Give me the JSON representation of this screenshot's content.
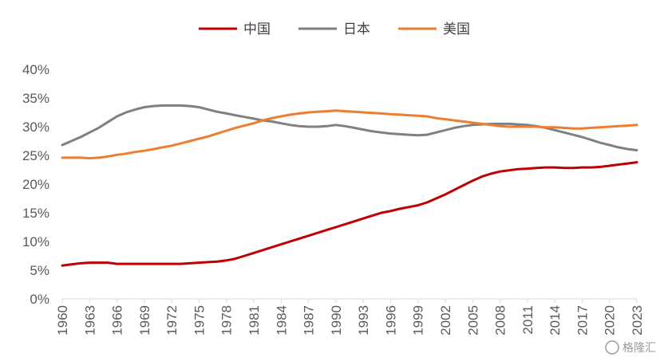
{
  "chart_data": {
    "type": "line",
    "title": "",
    "xlabel": "",
    "ylabel": "",
    "x": [
      1960,
      1961,
      1962,
      1963,
      1964,
      1965,
      1966,
      1967,
      1968,
      1969,
      1970,
      1971,
      1972,
      1973,
      1974,
      1975,
      1976,
      1977,
      1978,
      1979,
      1980,
      1981,
      1982,
      1983,
      1984,
      1985,
      1986,
      1987,
      1988,
      1989,
      1990,
      1991,
      1992,
      1993,
      1994,
      1995,
      1996,
      1997,
      1998,
      1999,
      2000,
      2001,
      2002,
      2003,
      2004,
      2005,
      2006,
      2007,
      2008,
      2009,
      2010,
      2011,
      2012,
      2013,
      2014,
      2015,
      2016,
      2017,
      2018,
      2019,
      2020,
      2021,
      2022,
      2023
    ],
    "x_tick_labels": [
      "1960",
      "1963",
      "1966",
      "1969",
      "1972",
      "1975",
      "1978",
      "1981",
      "1984",
      "1987",
      "1990",
      "1993",
      "1996",
      "1999",
      "2002",
      "2005",
      "2008",
      "2011",
      "2014",
      "2017",
      "2020",
      "2023"
    ],
    "ylim": [
      0,
      0.4
    ],
    "y_ticks": [
      0,
      0.05,
      0.1,
      0.15,
      0.2,
      0.25,
      0.3,
      0.35,
      0.4
    ],
    "y_tick_labels": [
      "0%",
      "5%",
      "10%",
      "15%",
      "20%",
      "25%",
      "30%",
      "35%",
      "40%"
    ],
    "grid": false,
    "legend_position": "top-center",
    "series": [
      {
        "name": "中国",
        "color": "#C00000",
        "values": [
          0.058,
          0.06,
          0.062,
          0.063,
          0.063,
          0.063,
          0.061,
          0.061,
          0.061,
          0.061,
          0.061,
          0.061,
          0.061,
          0.061,
          0.062,
          0.063,
          0.064,
          0.065,
          0.067,
          0.07,
          0.075,
          0.08,
          0.085,
          0.09,
          0.095,
          0.1,
          0.105,
          0.11,
          0.115,
          0.12,
          0.125,
          0.13,
          0.135,
          0.14,
          0.145,
          0.15,
          0.153,
          0.157,
          0.16,
          0.163,
          0.168,
          0.175,
          0.182,
          0.19,
          0.198,
          0.206,
          0.213,
          0.218,
          0.222,
          0.224,
          0.226,
          0.227,
          0.228,
          0.229,
          0.229,
          0.228,
          0.228,
          0.229,
          0.229,
          0.23,
          0.232,
          0.234,
          0.236,
          0.238
        ]
      },
      {
        "name": "日本",
        "color": "#808080",
        "values": [
          0.268,
          0.275,
          0.282,
          0.29,
          0.298,
          0.308,
          0.318,
          0.325,
          0.33,
          0.334,
          0.336,
          0.337,
          0.337,
          0.337,
          0.336,
          0.334,
          0.33,
          0.326,
          0.323,
          0.32,
          0.317,
          0.314,
          0.311,
          0.309,
          0.306,
          0.303,
          0.301,
          0.3,
          0.3,
          0.301,
          0.303,
          0.301,
          0.298,
          0.295,
          0.292,
          0.29,
          0.288,
          0.287,
          0.286,
          0.285,
          0.286,
          0.29,
          0.294,
          0.298,
          0.301,
          0.303,
          0.304,
          0.305,
          0.305,
          0.305,
          0.304,
          0.303,
          0.301,
          0.298,
          0.294,
          0.29,
          0.286,
          0.282,
          0.277,
          0.272,
          0.268,
          0.264,
          0.261,
          0.259
        ]
      },
      {
        "name": "美国",
        "color": "#ED7D31",
        "values": [
          0.246,
          0.246,
          0.246,
          0.245,
          0.246,
          0.248,
          0.251,
          0.253,
          0.256,
          0.258,
          0.261,
          0.264,
          0.267,
          0.271,
          0.275,
          0.279,
          0.283,
          0.288,
          0.293,
          0.298,
          0.302,
          0.306,
          0.311,
          0.315,
          0.318,
          0.321,
          0.323,
          0.325,
          0.326,
          0.327,
          0.328,
          0.327,
          0.326,
          0.325,
          0.324,
          0.323,
          0.322,
          0.321,
          0.32,
          0.319,
          0.318,
          0.315,
          0.313,
          0.311,
          0.309,
          0.307,
          0.305,
          0.303,
          0.301,
          0.3,
          0.3,
          0.3,
          0.3,
          0.299,
          0.299,
          0.298,
          0.297,
          0.297,
          0.298,
          0.299,
          0.3,
          0.301,
          0.302,
          0.303
        ]
      }
    ]
  },
  "watermark": {
    "text": "格隆汇",
    "icon": "logo-icon"
  }
}
